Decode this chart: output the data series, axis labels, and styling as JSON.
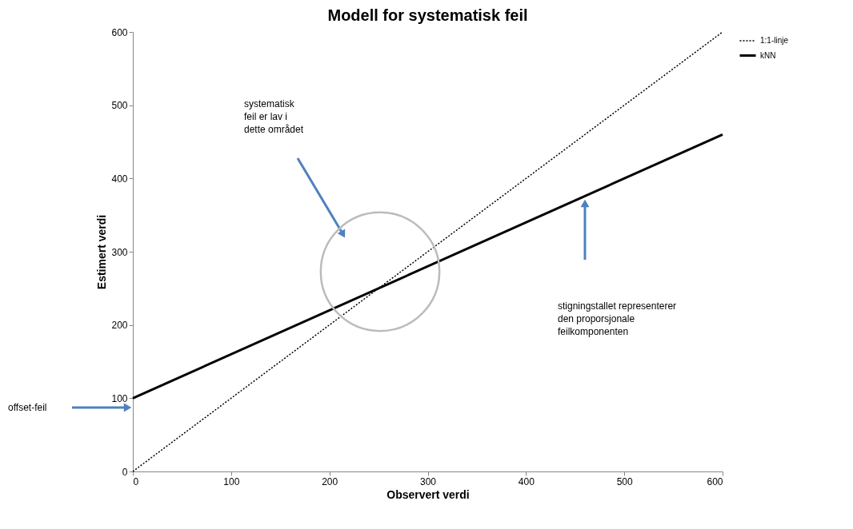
{
  "chart_data": {
    "type": "line",
    "title": "Modell for systematisk feil",
    "xlabel": "Observert verdi",
    "ylabel": "Estimert verdi",
    "x": [
      0,
      600
    ],
    "series": [
      {
        "name": "1:1-linje",
        "color": "#000000",
        "line_style": "dotted",
        "values": [
          0,
          600
        ]
      },
      {
        "name": "kNN",
        "color": "#000000",
        "line_style": "solid",
        "values": [
          100,
          460
        ]
      }
    ],
    "xlim": [
      0,
      600
    ],
    "ylim": [
      0,
      600
    ],
    "xticks": [
      0,
      100,
      200,
      300,
      400,
      500,
      600
    ],
    "yticks": [
      0,
      100,
      200,
      300,
      400,
      500,
      600
    ],
    "grid": false,
    "legend": "right",
    "marker": "none",
    "annotations": [
      "systematisk\nfeil er lav i\ndette området",
      "stigningstallet representerer\nden proporsjonale\nfeilkomponenten",
      "offset-feil"
    ]
  }
}
